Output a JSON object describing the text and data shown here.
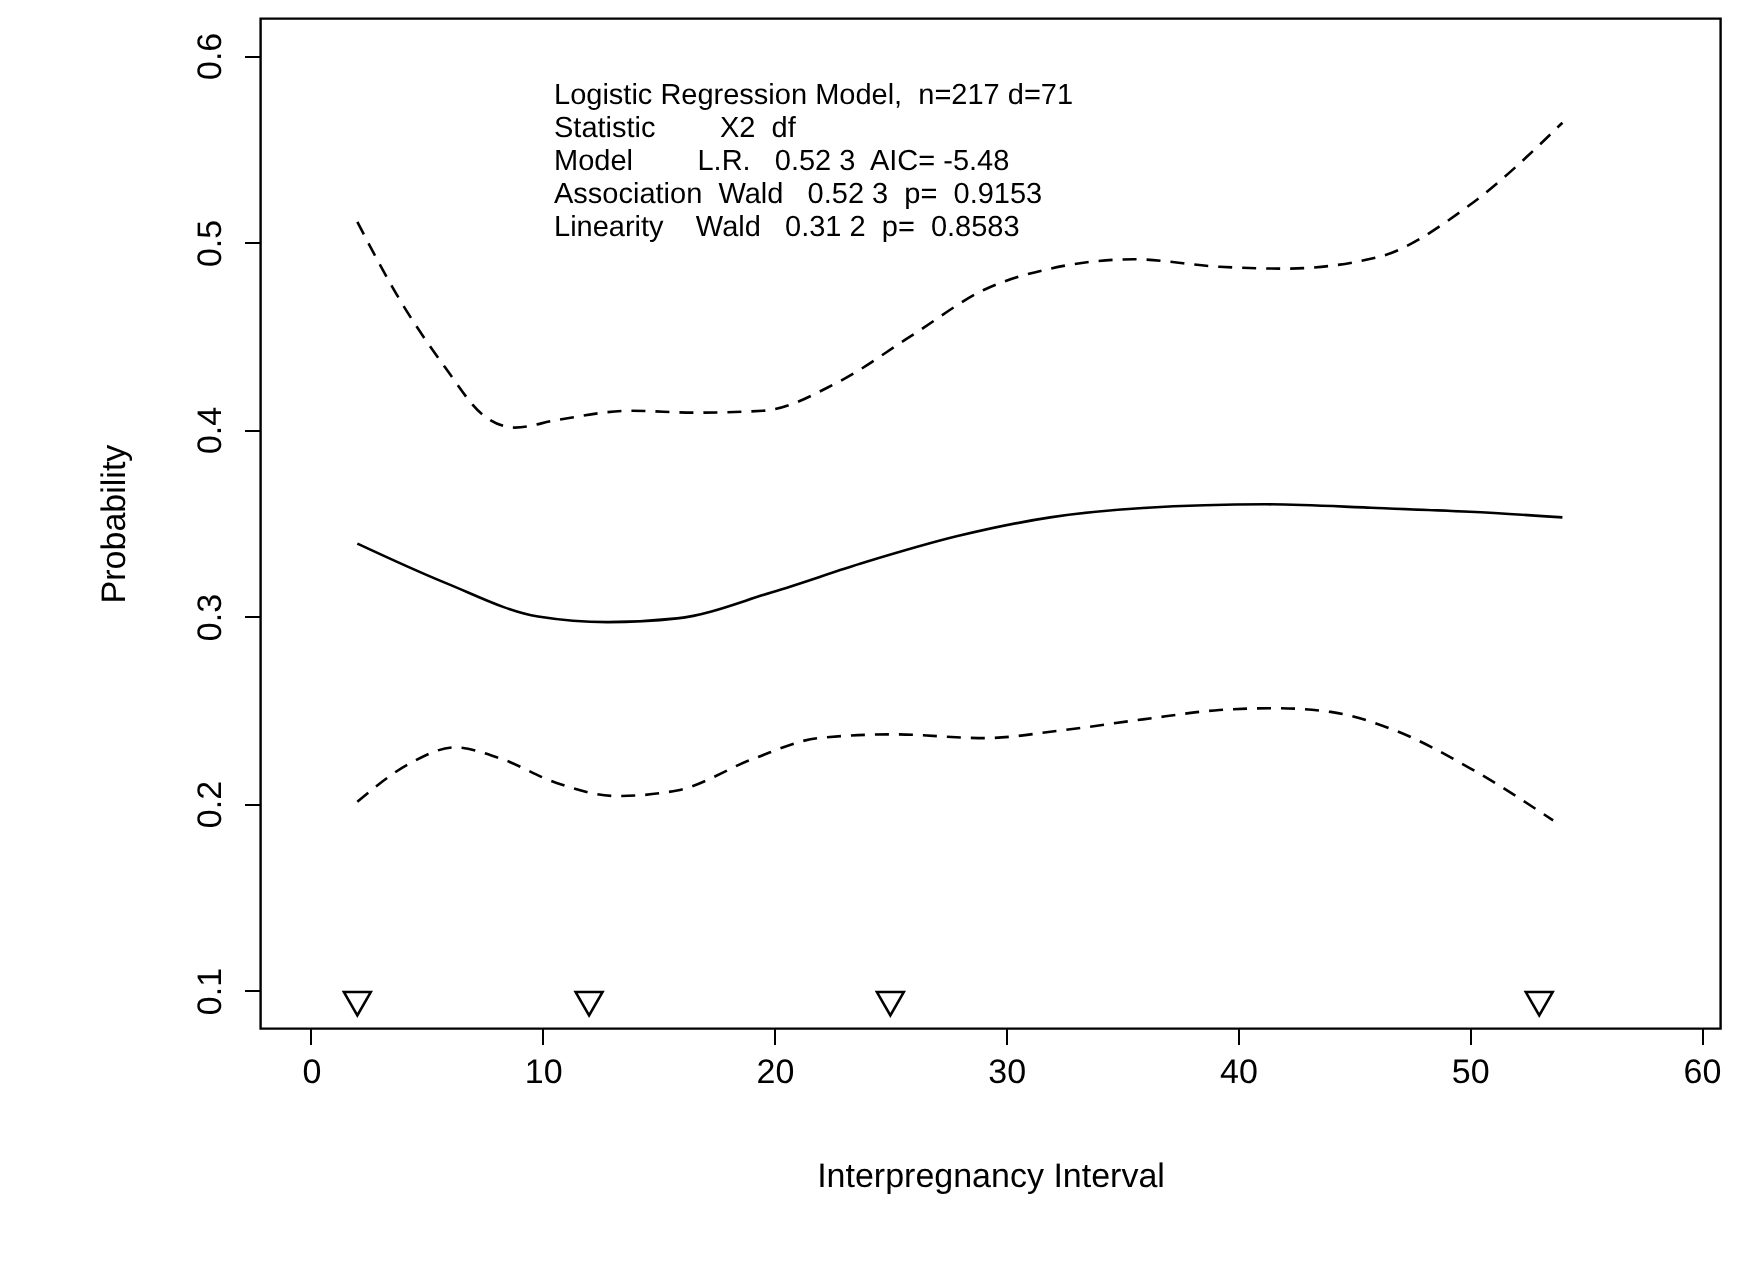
{
  "chart_data": {
    "type": "line",
    "xlabel": "Interpregnancy Interval",
    "ylabel": "Probability",
    "xlim": [
      -2.2,
      60.8
    ],
    "ylim": [
      0.08,
      0.62
    ],
    "xticks": [
      0,
      10,
      20,
      30,
      40,
      50,
      60
    ],
    "yticks": [
      0.1,
      0.2,
      0.3,
      0.4,
      0.5,
      0.6
    ],
    "grid": false,
    "annotations": [
      "Logistic Regression Model,  n=217 d=71",
      "   Statistic        X2  df",
      "Model        L.R.   0.52 3  AIC= -5.48",
      "Association  Wald   0.52 3  p=  0.9153",
      "Linearity    Wald   0.31 2  p=  0.8583"
    ],
    "series": [
      {
        "color": "#000000",
        "line_style": "solid",
        "x": [
          2,
          5.8,
          9.8,
          12.8,
          15.8,
          19.9,
          23.9,
          27.9,
          31.9,
          35.9,
          41.2,
          46,
          50,
          54
        ],
        "values": [
          0.339,
          0.318,
          0.3,
          0.297,
          0.299,
          0.313,
          0.329,
          0.343,
          0.353,
          0.358,
          0.36,
          0.358,
          0.356,
          0.353
        ]
      },
      {
        "color": "#000000",
        "line_style": "dashed",
        "x": [
          2,
          3.8,
          5.8,
          7.4,
          8.8,
          10.6,
          13.8,
          16.6,
          19.5,
          22.7,
          25.9,
          29.1,
          31.9,
          35.5,
          39.2,
          42,
          46,
          50,
          54
        ],
        "values": [
          0.511,
          0.47,
          0.433,
          0.408,
          0.401,
          0.405,
          0.41,
          0.409,
          0.41,
          0.425,
          0.45,
          0.475,
          0.486,
          0.491,
          0.487,
          0.486,
          0.492,
          0.52,
          0.564
        ]
      },
      {
        "color": "#000000",
        "line_style": "dashed",
        "x": [
          2,
          4.2,
          6.2,
          8.2,
          10.6,
          13.2,
          15.8,
          19.1,
          21.9,
          25.1,
          29.1,
          32.3,
          35.9,
          39.2,
          41.6,
          44,
          46.8,
          50,
          53.6
        ],
        "values": [
          0.201,
          0.221,
          0.23,
          0.224,
          0.211,
          0.204,
          0.207,
          0.224,
          0.235,
          0.237,
          0.235,
          0.239,
          0.245,
          0.25,
          0.251,
          0.249,
          0.239,
          0.219,
          0.191
        ]
      },
      {
        "type": "scatter",
        "marker": "triangle",
        "color": "#000000",
        "x": [
          2,
          12,
          25,
          53
        ],
        "values": [
          0.093,
          0.093,
          0.093,
          0.093
        ]
      }
    ]
  }
}
